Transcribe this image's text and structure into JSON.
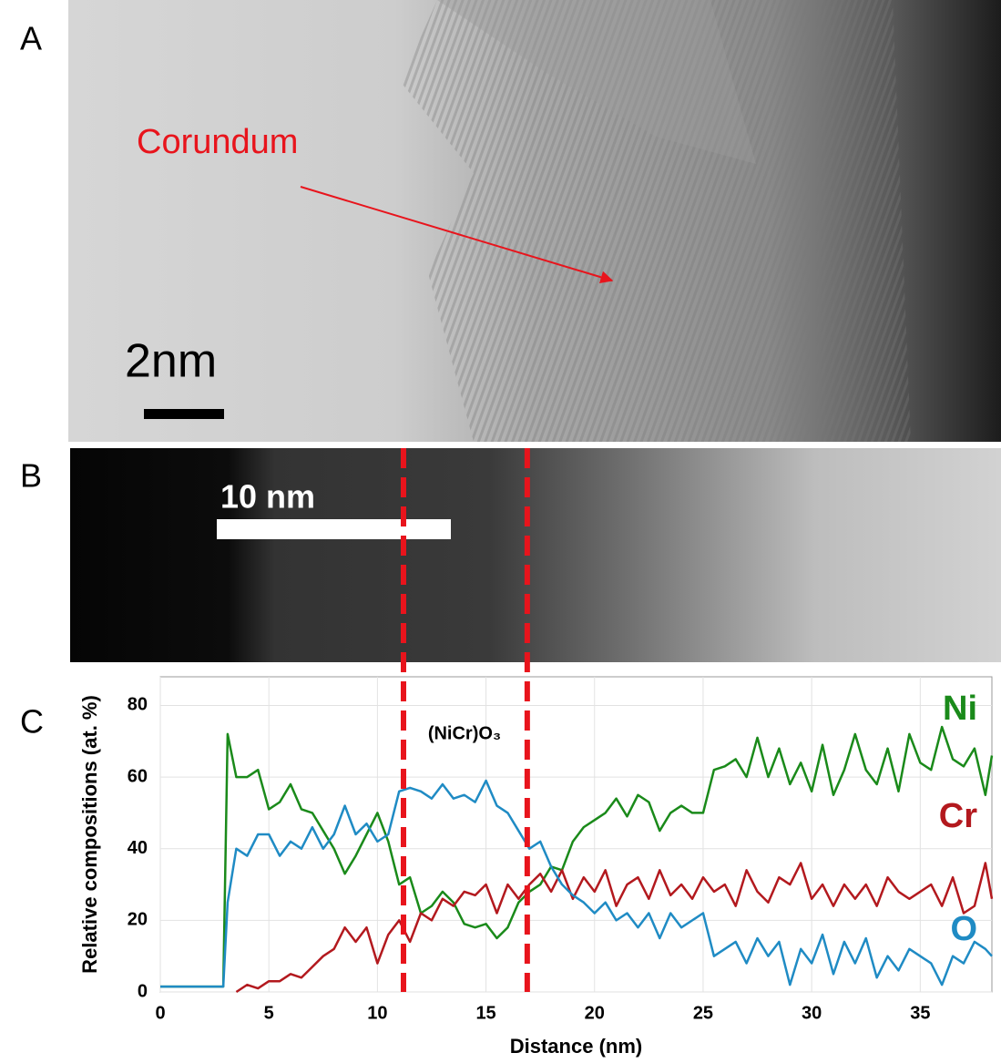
{
  "panels": {
    "a": {
      "label": "A",
      "annotation": "Corundum",
      "scale_bar": "2nm"
    },
    "b": {
      "label": "B",
      "scale_bar": "10 nm"
    },
    "c": {
      "label": "C"
    }
  },
  "chart_data": {
    "type": "line",
    "x_label": "Distance (nm)",
    "y_label": "Relative compositions (at. %)",
    "annotation": "(NiCr)O₃",
    "markers": [
      11.2,
      16.9
    ],
    "marker_color": "#e8141c",
    "xlim": [
      0,
      38.3
    ],
    "ylim": [
      0,
      88
    ],
    "xticks": [
      0,
      5,
      10,
      15,
      20,
      25,
      30,
      35
    ],
    "yticks": [
      0,
      20,
      40,
      60,
      80
    ],
    "grid": true,
    "legend": "right",
    "x": [
      0,
      1,
      2,
      2.9,
      3.1,
      3.5,
      4,
      4.5,
      5,
      5.5,
      6,
      6.5,
      7,
      7.5,
      8,
      8.5,
      9,
      9.5,
      10,
      10.5,
      11,
      11.5,
      12,
      12.5,
      13,
      13.5,
      14,
      14.5,
      15,
      15.5,
      16,
      16.5,
      17,
      17.5,
      18,
      18.5,
      19,
      19.5,
      20,
      20.5,
      21,
      21.5,
      22,
      22.5,
      23,
      23.5,
      24,
      24.5,
      25,
      25.5,
      26,
      26.5,
      27,
      27.5,
      28,
      28.5,
      29,
      29.5,
      30,
      30.5,
      31,
      31.5,
      32,
      32.5,
      33,
      33.5,
      34,
      34.5,
      35,
      35.5,
      36,
      36.5,
      37,
      37.5,
      38,
      38.3
    ],
    "series": [
      {
        "name": "Ni",
        "color": "#1a8a1a",
        "values": [
          1.5,
          1.5,
          1.5,
          1.5,
          72,
          60,
          60,
          62,
          51,
          53,
          58,
          51,
          50,
          45,
          40,
          33,
          38,
          44,
          50,
          42,
          30,
          32,
          22,
          24,
          28,
          25,
          19,
          18,
          19,
          15,
          18,
          25,
          28,
          30,
          35,
          34,
          42,
          46,
          48,
          50,
          54,
          49,
          55,
          53,
          45,
          50,
          52,
          50,
          50,
          62,
          63,
          65,
          60,
          71,
          60,
          68,
          58,
          64,
          56,
          69,
          55,
          62,
          72,
          62,
          58,
          68,
          56,
          72,
          64,
          62,
          74,
          65,
          63,
          68,
          55,
          66
        ]
      },
      {
        "name": "Cr",
        "color": "#b3191e",
        "values": [
          null,
          null,
          null,
          null,
          null,
          0,
          2,
          1,
          3,
          3,
          5,
          4,
          7,
          10,
          12,
          18,
          14,
          18,
          8,
          16,
          20,
          14,
          22,
          20,
          26,
          24,
          28,
          27,
          30,
          22,
          30,
          26,
          30,
          33,
          28,
          34,
          26,
          32,
          28,
          34,
          24,
          30,
          32,
          26,
          34,
          27,
          30,
          26,
          32,
          28,
          30,
          24,
          34,
          28,
          25,
          32,
          30,
          36,
          26,
          30,
          24,
          30,
          26,
          30,
          24,
          32,
          28,
          26,
          28,
          30,
          24,
          32,
          22,
          24,
          36,
          26
        ]
      },
      {
        "name": "O",
        "color": "#1f8bc4",
        "values": [
          1.5,
          1.5,
          1.5,
          1.5,
          25,
          40,
          38,
          44,
          44,
          38,
          42,
          40,
          46,
          40,
          44,
          52,
          44,
          47,
          42,
          44,
          56,
          57,
          56,
          54,
          58,
          54,
          55,
          53,
          59,
          52,
          50,
          45,
          40,
          42,
          35,
          30,
          27,
          25,
          22,
          25,
          20,
          22,
          18,
          22,
          15,
          22,
          18,
          20,
          22,
          10,
          12,
          14,
          8,
          15,
          10,
          14,
          2,
          12,
          8,
          16,
          5,
          14,
          8,
          15,
          4,
          10,
          6,
          12,
          10,
          8,
          2,
          10,
          8,
          14,
          12,
          10
        ]
      }
    ]
  }
}
